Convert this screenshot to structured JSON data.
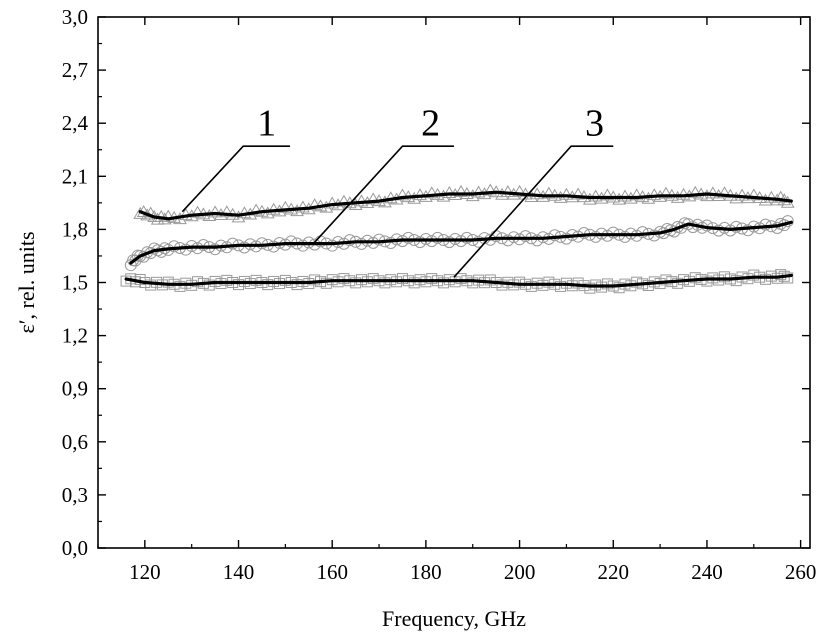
{
  "chart_data": {
    "type": "scatter",
    "xlabel": "Frequency, GHz",
    "ylabel": "ε′, rel. units",
    "xlim": [
      110,
      262
    ],
    "ylim": [
      0.0,
      3.0
    ],
    "x_ticks": [
      120,
      140,
      160,
      180,
      200,
      220,
      240,
      260
    ],
    "x_tick_labels": [
      "120",
      "140",
      "160",
      "180",
      "200",
      "220",
      "240",
      "260"
    ],
    "y_ticks": [
      0.0,
      0.3,
      0.6,
      0.9,
      1.2,
      1.5,
      1.8,
      2.1,
      2.4,
      2.7,
      3.0
    ],
    "y_tick_labels": [
      "0,0",
      "0,3",
      "0,6",
      "0,9",
      "1,2",
      "1,5",
      "1,8",
      "2,1",
      "2,4",
      "2,7",
      "3,0"
    ],
    "grid": false,
    "legend": "none",
    "series": [
      {
        "label": "1",
        "marker": "triangle",
        "color": "#000000",
        "marker_color": "#9a9a9a",
        "x": [
          119,
          122,
          125,
          130,
          135,
          140,
          145,
          150,
          155,
          160,
          165,
          170,
          175,
          180,
          185,
          190,
          195,
          200,
          205,
          210,
          215,
          220,
          225,
          230,
          235,
          240,
          245,
          250,
          255,
          258
        ],
        "y": [
          1.9,
          1.87,
          1.86,
          1.88,
          1.89,
          1.88,
          1.9,
          1.91,
          1.92,
          1.94,
          1.95,
          1.96,
          1.98,
          1.99,
          2.0,
          2.0,
          2.01,
          2.0,
          1.99,
          1.99,
          1.98,
          1.98,
          1.98,
          1.99,
          1.99,
          2.0,
          1.99,
          1.98,
          1.97,
          1.96
        ]
      },
      {
        "label": "2",
        "marker": "circle",
        "color": "#000000",
        "marker_color": "#9a9a9a",
        "x": [
          117,
          119,
          122,
          125,
          130,
          135,
          140,
          145,
          150,
          155,
          160,
          165,
          170,
          175,
          180,
          185,
          190,
          195,
          200,
          205,
          210,
          215,
          220,
          225,
          230,
          233,
          236,
          240,
          245,
          250,
          255,
          258
        ],
        "y": [
          1.61,
          1.65,
          1.68,
          1.69,
          1.7,
          1.7,
          1.71,
          1.71,
          1.72,
          1.72,
          1.72,
          1.73,
          1.73,
          1.74,
          1.74,
          1.74,
          1.74,
          1.75,
          1.75,
          1.75,
          1.76,
          1.77,
          1.77,
          1.77,
          1.78,
          1.8,
          1.83,
          1.81,
          1.8,
          1.81,
          1.82,
          1.84
        ]
      },
      {
        "label": "3",
        "marker": "square",
        "color": "#000000",
        "marker_color": "#9a9a9a",
        "x": [
          116,
          120,
          125,
          130,
          135,
          140,
          145,
          150,
          155,
          160,
          165,
          170,
          175,
          180,
          185,
          190,
          195,
          200,
          205,
          210,
          215,
          220,
          225,
          230,
          235,
          240,
          245,
          250,
          255,
          258
        ],
        "y": [
          1.52,
          1.5,
          1.49,
          1.49,
          1.5,
          1.5,
          1.5,
          1.5,
          1.5,
          1.51,
          1.51,
          1.51,
          1.51,
          1.51,
          1.51,
          1.51,
          1.5,
          1.49,
          1.49,
          1.49,
          1.48,
          1.48,
          1.49,
          1.5,
          1.51,
          1.52,
          1.52,
          1.53,
          1.53,
          1.54
        ]
      }
    ],
    "annotations": [
      {
        "text": "1",
        "text_x": 146,
        "text_y": 2.33,
        "leader_from": [
          151,
          2.27
        ],
        "leader_knee": [
          141,
          2.27
        ],
        "leader_to": [
          128,
          1.9
        ]
      },
      {
        "text": "2",
        "text_x": 181,
        "text_y": 2.33,
        "leader_from": [
          186,
          2.27
        ],
        "leader_knee": [
          175,
          2.27
        ],
        "leader_to": [
          156,
          1.72
        ]
      },
      {
        "text": "3",
        "text_x": 216,
        "text_y": 2.33,
        "leader_from": [
          220,
          2.27
        ],
        "leader_knee": [
          211,
          2.27
        ],
        "leader_to": [
          186,
          1.53
        ]
      }
    ]
  }
}
